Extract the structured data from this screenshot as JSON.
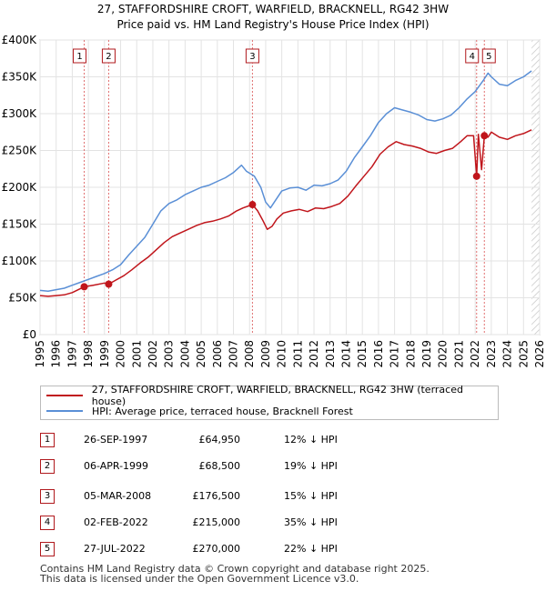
{
  "title_line1": "27, STAFFORDSHIRE CROFT, WARFIELD, BRACKNELL, RG42 3HW",
  "title_line2": "Price paid vs. HM Land Registry's House Price Index (HPI)",
  "legend": {
    "property_label": "27, STAFFORDSHIRE CROFT, WARFIELD, BRACKNELL, RG42 3HW (terraced house)",
    "hpi_label": "HPI: Average price, terraced house, Bracknell Forest"
  },
  "colors": {
    "property": "#c0151b",
    "hpi": "#5a8fd6",
    "marker_line": "#e07070",
    "hatch": "#c8c8c8"
  },
  "transactions": [
    {
      "num": "1",
      "date": "26-SEP-1997",
      "price": "£64,950",
      "hpi": "12% ↓ HPI"
    },
    {
      "num": "2",
      "date": "06-APR-1999",
      "price": "£68,500",
      "hpi": "19% ↓ HPI"
    },
    {
      "num": "3",
      "date": "05-MAR-2008",
      "price": "£176,500",
      "hpi": "15% ↓ HPI"
    },
    {
      "num": "4",
      "date": "02-FEB-2022",
      "price": "£215,000",
      "hpi": "35% ↓ HPI"
    },
    {
      "num": "5",
      "date": "27-JUL-2022",
      "price": "£270,000",
      "hpi": "22% ↓ HPI"
    }
  ],
  "footer_line1": "Contains HM Land Registry data © Crown copyright and database right 2025.",
  "footer_line2": "This data is licensed under the Open Government Licence v3.0.",
  "chart_data": {
    "type": "line",
    "title": "27, STAFFORDSHIRE CROFT, WARFIELD, BRACKNELL, RG42 3HW — Price paid vs. HM Land Registry's House Price Index (HPI)",
    "xlabel": "",
    "ylabel": "",
    "xlim": [
      1995,
      2026
    ],
    "ylim": [
      0,
      400000
    ],
    "y_ticks": [
      0,
      50000,
      100000,
      150000,
      200000,
      250000,
      300000,
      350000,
      400000
    ],
    "y_tick_labels": [
      "£0",
      "£50K",
      "£100K",
      "£150K",
      "£200K",
      "£250K",
      "£300K",
      "£350K",
      "£400K"
    ],
    "x_ticks": [
      1995,
      1996,
      1997,
      1998,
      1999,
      2000,
      2001,
      2002,
      2003,
      2004,
      2005,
      2006,
      2007,
      2008,
      2009,
      2010,
      2011,
      2012,
      2013,
      2014,
      2015,
      2016,
      2017,
      2018,
      2019,
      2020,
      2021,
      2022,
      2023,
      2024,
      2025,
      2026
    ],
    "x_tick_labels": [
      "1995",
      "1996",
      "1997",
      "1998",
      "1999",
      "2000",
      "2001",
      "2002",
      "2003",
      "2004",
      "2005",
      "2006",
      "2007",
      "2008",
      "2009",
      "2010",
      "2011",
      "2012",
      "2013",
      "2014",
      "2015",
      "2016",
      "2017",
      "2018",
      "2019",
      "2020",
      "2021",
      "2022",
      "2023",
      "2024",
      "2025",
      "2026"
    ],
    "grid": true,
    "series": [
      {
        "name": "HPI: Average price, terraced house, Bracknell Forest",
        "color": "#5a8fd6",
        "x": [
          1995.0,
          1995.5,
          1996.0,
          1996.5,
          1997.0,
          1997.5,
          1998.0,
          1998.5,
          1999.0,
          1999.5,
          2000.0,
          2000.5,
          2001.0,
          2001.5,
          2002.0,
          2002.5,
          2003.0,
          2003.5,
          2004.0,
          2004.5,
          2005.0,
          2005.5,
          2006.0,
          2006.5,
          2007.0,
          2007.5,
          2007.8,
          2008.3,
          2008.7,
          2009.0,
          2009.3,
          2009.6,
          2010.0,
          2010.5,
          2011.0,
          2011.5,
          2012.0,
          2012.5,
          2013.0,
          2013.5,
          2014.0,
          2014.5,
          2015.0,
          2015.5,
          2016.0,
          2016.5,
          2017.0,
          2017.5,
          2018.0,
          2018.5,
          2019.0,
          2019.5,
          2020.0,
          2020.5,
          2021.0,
          2021.5,
          2022.0,
          2022.5,
          2022.8,
          2023.0,
          2023.5,
          2024.0,
          2024.5,
          2025.0,
          2025.5
        ],
        "y": [
          60000,
          59000,
          61000,
          63000,
          67000,
          71000,
          75000,
          79000,
          83000,
          88000,
          95000,
          108000,
          120000,
          132000,
          150000,
          168000,
          178000,
          183000,
          190000,
          195000,
          200000,
          203000,
          208000,
          213000,
          220000,
          230000,
          222000,
          215000,
          200000,
          180000,
          172000,
          182000,
          195000,
          199000,
          200000,
          196000,
          203000,
          202000,
          205000,
          210000,
          222000,
          240000,
          255000,
          270000,
          288000,
          300000,
          308000,
          305000,
          302000,
          298000,
          292000,
          290000,
          293000,
          298000,
          308000,
          320000,
          330000,
          345000,
          355000,
          350000,
          340000,
          338000,
          345000,
          350000,
          358000
        ]
      },
      {
        "name": "27, STAFFORDSHIRE CROFT, WARFIELD, BRACKNELL, RG42 3HW (terraced house)",
        "color": "#c0151b",
        "x": [
          1995.0,
          1995.5,
          1996.0,
          1996.5,
          1997.0,
          1997.74,
          1998.3,
          1999.0,
          1999.26,
          1999.7,
          2000.2,
          2000.7,
          2001.2,
          2001.7,
          2002.2,
          2002.7,
          2003.2,
          2003.7,
          2004.2,
          2004.7,
          2005.2,
          2005.7,
          2006.2,
          2006.7,
          2007.2,
          2007.6,
          2008.18,
          2008.5,
          2008.8,
          2009.1,
          2009.4,
          2009.7,
          2010.1,
          2010.6,
          2011.1,
          2011.6,
          2012.1,
          2012.6,
          2013.1,
          2013.6,
          2014.1,
          2014.6,
          2015.1,
          2015.6,
          2016.1,
          2016.6,
          2017.1,
          2017.6,
          2018.1,
          2018.6,
          2019.1,
          2019.6,
          2020.1,
          2020.6,
          2021.1,
          2021.5,
          2021.9,
          2022.09,
          2022.2,
          2022.4,
          2022.57,
          2022.8,
          2023.0,
          2023.5,
          2024.0,
          2024.5,
          2025.0,
          2025.5
        ],
        "y": [
          53000,
          52000,
          53000,
          54000,
          57000,
          64950,
          67000,
          70000,
          68500,
          74000,
          80000,
          88000,
          97000,
          105000,
          115000,
          125000,
          133000,
          138000,
          143000,
          148000,
          152000,
          154000,
          157000,
          161000,
          168000,
          172000,
          176500,
          168000,
          156000,
          143000,
          147000,
          157000,
          165000,
          168000,
          170000,
          167000,
          172000,
          171000,
          174000,
          178000,
          188000,
          202000,
          215000,
          228000,
          245000,
          255000,
          262000,
          258000,
          256000,
          253000,
          248000,
          246000,
          250000,
          253000,
          262000,
          270000,
          270000,
          215000,
          272000,
          224000,
          270000,
          268000,
          275000,
          268000,
          265000,
          270000,
          273000,
          278000
        ]
      }
    ],
    "sale_points": [
      {
        "label": "1",
        "x": 1997.74,
        "y": 64950
      },
      {
        "label": "2",
        "x": 1999.26,
        "y": 68500
      },
      {
        "label": "3",
        "x": 2008.18,
        "y": 176500
      },
      {
        "label": "4",
        "x": 2022.09,
        "y": 215000
      },
      {
        "label": "5",
        "x": 2022.57,
        "y": 270000
      }
    ],
    "hatch_region_from": 2025.5
  }
}
